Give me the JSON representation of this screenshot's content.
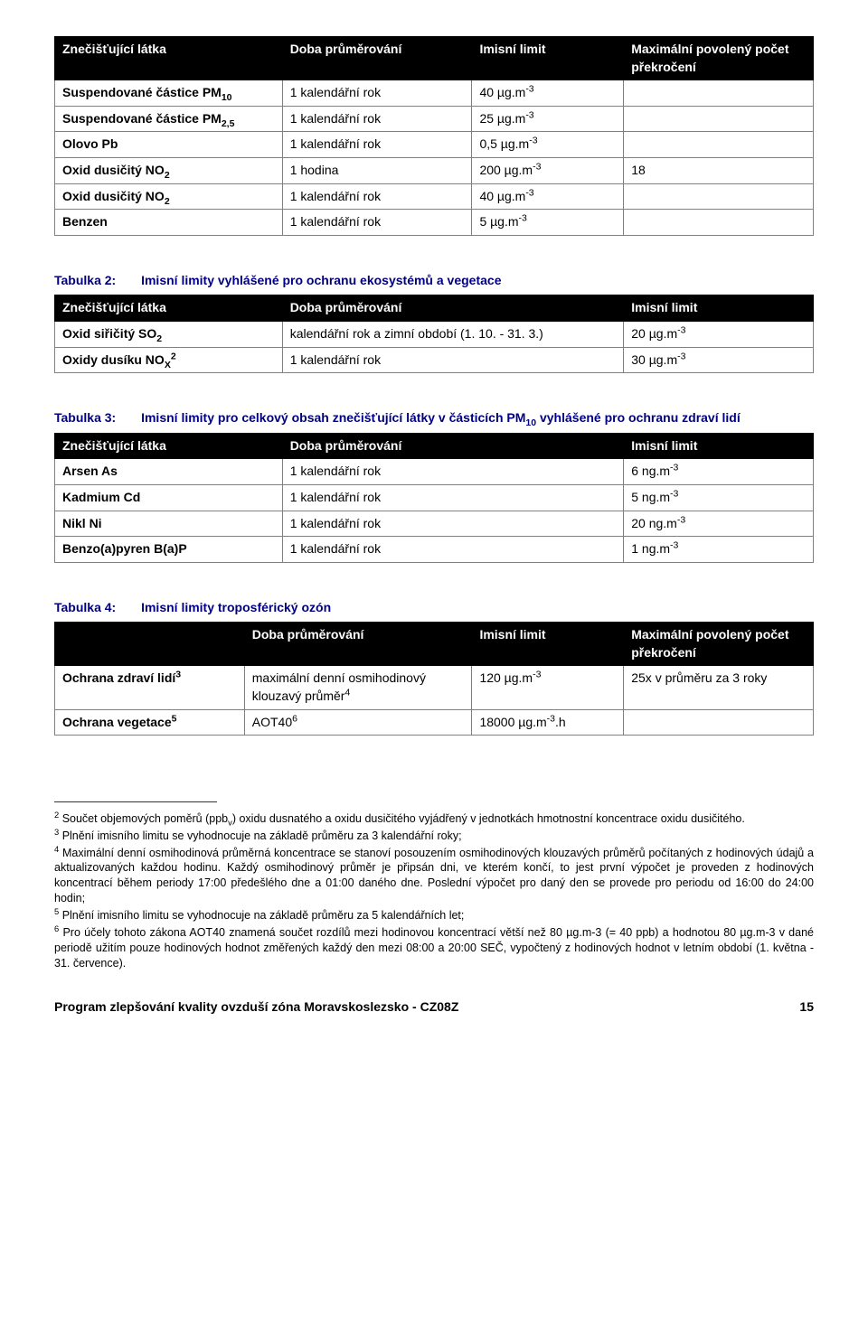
{
  "colors": {
    "header_bg": "#000000",
    "header_fg": "#ffffff",
    "cell_border": "#808080",
    "caption_color": "#000080",
    "text_color": "#000000"
  },
  "table1": {
    "headers": [
      "Znečišťující látka",
      "Doba průměrování",
      "Imisní limit",
      "Maximální povolený počet překročení"
    ],
    "colwidths": [
      "30%",
      "25%",
      "20%",
      "25%"
    ],
    "rows": [
      [
        "Suspendované částice PM|sub|10",
        "1 kalendářní rok",
        "40 µg.m|sup|-3",
        ""
      ],
      [
        "Suspendované částice PM|sub|2,5",
        "1 kalendářní rok",
        "25 µg.m|sup|-3",
        ""
      ],
      [
        "Olovo Pb",
        "1 kalendářní rok",
        "0,5 µg.m|sup|-3",
        ""
      ],
      [
        "Oxid dusičitý NO|sub|2",
        "1 hodina",
        "200 µg.m|sup|-3",
        "18"
      ],
      [
        "Oxid dusičitý NO|sub|2",
        "1 kalendářní rok",
        "40 µg.m|sup|-3",
        ""
      ],
      [
        "Benzen",
        "1 kalendářní rok",
        "5 µg.m|sup|-3",
        ""
      ]
    ]
  },
  "table2": {
    "caption_key": "Tabulka 2:",
    "caption_txt": "Imisní limity vyhlášené pro ochranu ekosystémů a vegetace",
    "headers": [
      "Znečišťující látka",
      "Doba průměrování",
      "Imisní limit"
    ],
    "colwidths": [
      "30%",
      "45%",
      "25%"
    ],
    "rows": [
      [
        "Oxid siřičitý SO|sub|2",
        "kalendářní rok a zimní období (1. 10. - 31. 3.)",
        "20 µg.m|sup|-3"
      ],
      [
        "Oxidy dusíku NO|sub|X|sup|2",
        "1 kalendářní rok",
        "30 µg.m|sup|-3"
      ]
    ]
  },
  "table3": {
    "caption_key": "Tabulka 3:",
    "caption_txt": "Imisní limity pro celkový obsah znečišťující látky v částicích PM|sub|10|end| vyhlášené pro ochranu zdraví lidí",
    "headers": [
      "Znečišťující látka",
      "Doba průměrování",
      "Imisní limit"
    ],
    "colwidths": [
      "30%",
      "45%",
      "25%"
    ],
    "rows": [
      [
        "Arsen As",
        "1 kalendářní rok",
        "6 ng.m|sup|-3"
      ],
      [
        "Kadmium Cd",
        "1 kalendářní rok",
        "5 ng.m|sup|-3"
      ],
      [
        "Nikl Ni",
        "1 kalendářní rok",
        "20 ng.m|sup|-3"
      ],
      [
        "Benzo(a)pyren B(a)P",
        "1 kalendářní rok",
        "1 ng.m|sup|-3"
      ]
    ]
  },
  "table4": {
    "caption_key": "Tabulka 4:",
    "caption_txt": "Imisní limity troposférický ozón",
    "headers": [
      "",
      "Doba průměrování",
      "Imisní limit",
      "Maximální povolený počet překročení"
    ],
    "colwidths": [
      "25%",
      "30%",
      "20%",
      "25%"
    ],
    "rows": [
      [
        "Ochrana zdraví lidí|sup|3",
        "maximální denní osmihodinový klouzavý průměr|sup|4",
        "120 µg.m|sup|-3",
        "25x v průměru za 3 roky"
      ],
      [
        "Ochrana vegetace|sup|5",
        "AOT40|sup|6",
        "18000 µg.m|sup|-3|end|.h",
        ""
      ]
    ]
  },
  "footnotes": [
    "|sup|2|end| Součet objemových poměrů (ppb|sub|v|end|) oxidu dusnatého a oxidu dusičitého vyjádřený v jednotkách hmotnostní koncentrace oxidu dusičitého.",
    "|sup|3|end| Plnění imisního limitu se vyhodnocuje na základě průměru za 3 kalendářní roky;",
    "|sup|4|end| Maximální denní osmihodinová průměrná koncentrace se stanoví posouzením osmihodinových klouzavých průměrů počítaných z hodinových údajů a aktualizovaných každou hodinu. Každý osmihodinový průměr je připsán dni, ve kterém končí, to jest první výpočet je proveden z hodinových koncentrací během periody 17:00 předešlého dne a 01:00 daného dne. Poslední výpočet pro daný den se provede pro periodu od 16:00 do 24:00 hodin;",
    "|sup|5|end| Plnění imisního limitu se vyhodnocuje na základě průměru za 5 kalendářních let;",
    "|sup|6|end| Pro účely tohoto zákona AOT40 znamená součet rozdílů mezi hodinovou koncentrací větší než 80 µg.m-3 (= 40 ppb) a hodnotou 80 µg.m-3 v dané periodě užitím pouze hodinových hodnot změřených každý den mezi 08:00 a 20:00 SEČ, vypočtený z hodinových hodnot v letním období (1. května - 31. července)."
  ],
  "footer": {
    "text": "Program zlepšování kvality ovzduší zóna Moravskoslezsko - CZ08Z",
    "page": "15"
  }
}
